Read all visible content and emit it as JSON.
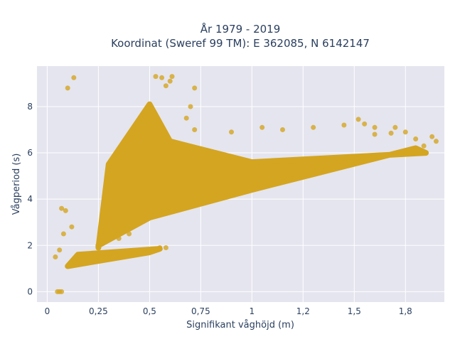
{
  "chart_data": {
    "type": "scatter",
    "title_line1": "År 1979 - 2019",
    "title_line2": "Koordinat (Sweref 99 TM): E 362085, N 6142147",
    "xlabel": "Signifikant våghöjd (m)",
    "ylabel": "Vågperiod (s)",
    "xlim": [
      -0.05,
      1.94
    ],
    "ylim": [
      -0.45,
      9.75
    ],
    "x_ticks": [
      {
        "value": 0,
        "label": "0"
      },
      {
        "value": 0.25,
        "label": "0,25"
      },
      {
        "value": 0.5,
        "label": "0,5"
      },
      {
        "value": 0.75,
        "label": "0,75"
      },
      {
        "value": 1,
        "label": "1"
      },
      {
        "value": 1.25,
        "label": "1,2"
      },
      {
        "value": 1.5,
        "label": "1,5"
      },
      {
        "value": 1.75,
        "label": "1,8"
      }
    ],
    "y_ticks": [
      {
        "value": 0,
        "label": "0"
      },
      {
        "value": 2,
        "label": "2"
      },
      {
        "value": 4,
        "label": "4"
      },
      {
        "value": 6,
        "label": "6"
      },
      {
        "value": 8,
        "label": "8"
      }
    ],
    "grid": true,
    "marker_color": "#d4a520",
    "background_color": "#e5e5ef",
    "grid_color": "#ffffff",
    "point_cloud": {
      "description": "dense scatter of hourly wave observations",
      "dense_core": [
        [
          0.25,
          1.9
        ],
        [
          0.3,
          5.5
        ],
        [
          0.5,
          8.1
        ],
        [
          0.6,
          6.5
        ],
        [
          1.0,
          5.6
        ],
        [
          1.85,
          6.0
        ],
        [
          1.8,
          6.2
        ],
        [
          1.0,
          4.4
        ],
        [
          0.5,
          3.2
        ],
        [
          0.25,
          2.0
        ]
      ],
      "lower_band": [
        [
          0.1,
          1.1
        ],
        [
          0.5,
          1.7
        ],
        [
          0.55,
          1.85
        ],
        [
          0.15,
          1.6
        ]
      ],
      "sparse_points": [
        [
          0.06,
          0.0
        ],
        [
          0.07,
          0.0
        ],
        [
          0.05,
          0.0
        ],
        [
          0.1,
          8.8
        ],
        [
          0.13,
          9.25
        ],
        [
          0.53,
          9.3
        ],
        [
          0.56,
          9.25
        ],
        [
          0.6,
          9.1
        ],
        [
          0.61,
          9.3
        ],
        [
          0.58,
          8.9
        ],
        [
          0.72,
          8.8
        ],
        [
          0.7,
          8.0
        ],
        [
          0.68,
          7.5
        ],
        [
          0.72,
          7.0
        ],
        [
          0.9,
          6.9
        ],
        [
          1.05,
          7.1
        ],
        [
          1.15,
          7.0
        ],
        [
          1.3,
          7.1
        ],
        [
          1.45,
          7.2
        ],
        [
          1.55,
          7.25
        ],
        [
          1.6,
          7.1
        ],
        [
          1.7,
          7.1
        ],
        [
          1.75,
          6.9
        ],
        [
          1.88,
          6.7
        ],
        [
          1.52,
          7.45
        ],
        [
          0.07,
          3.6
        ],
        [
          0.09,
          3.5
        ],
        [
          0.08,
          2.5
        ],
        [
          0.04,
          1.5
        ],
        [
          0.06,
          1.8
        ],
        [
          0.12,
          2.8
        ],
        [
          0.55,
          1.9
        ],
        [
          0.58,
          1.9
        ],
        [
          0.35,
          2.3
        ],
        [
          0.4,
          2.5
        ],
        [
          1.6,
          6.8
        ],
        [
          1.68,
          6.85
        ],
        [
          1.8,
          6.6
        ],
        [
          1.84,
          6.3
        ],
        [
          1.9,
          6.5
        ]
      ]
    }
  }
}
